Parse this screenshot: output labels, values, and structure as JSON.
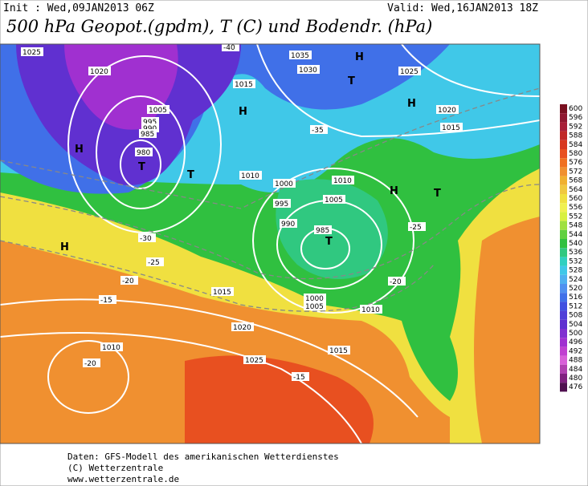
{
  "header": {
    "init": "Init : Wed,09JAN2013 06Z",
    "valid": "Valid: Wed,16JAN2013 18Z",
    "title": "500 hPa Geopot.(gpdm), T (C) und Bodendr. (hPa)"
  },
  "colorbar": {
    "labels": [
      "600",
      "596",
      "592",
      "588",
      "584",
      "580",
      "576",
      "572",
      "568",
      "564",
      "560",
      "556",
      "552",
      "548",
      "544",
      "540",
      "536",
      "532",
      "528",
      "524",
      "520",
      "516",
      "512",
      "508",
      "504",
      "500",
      "496",
      "492",
      "488",
      "484",
      "480",
      "476"
    ],
    "colors": [
      "#7a1020",
      "#901830",
      "#a82038",
      "#c02828",
      "#d83820",
      "#e85020",
      "#f07020",
      "#f09030",
      "#f0b030",
      "#f0c840",
      "#f0e040",
      "#f0f050",
      "#d8f040",
      "#a0e040",
      "#60d040",
      "#30c040",
      "#30c880",
      "#30d0c0",
      "#40c8e8",
      "#50b0f0",
      "#5090f0",
      "#4070e8",
      "#4050e0",
      "#5040d8",
      "#6030d0",
      "#8030d0",
      "#a030d0",
      "#c040d0",
      "#d860d8",
      "#b040b0",
      "#802080",
      "#501050"
    ]
  },
  "map": {
    "labels": [
      "1025",
      "1020",
      "1005",
      "995",
      "990",
      "985",
      "980",
      "T",
      "H",
      "H",
      "T",
      "T",
      "H",
      "H",
      "T",
      "H",
      "T",
      "H",
      "-40",
      "-35",
      "-30",
      "-25",
      "-20",
      "-15",
      "-25",
      "-20",
      "1010",
      "1015",
      "1030",
      "1035",
      "1000",
      "1010",
      "1005",
      "995",
      "990",
      "985",
      "1000",
      "1005",
      "1015",
      "1020",
      "1025",
      "1015",
      "1010",
      "1020",
      "1025",
      "1015",
      "-15",
      "-20",
      "1010"
    ]
  },
  "footer": {
    "lines": [
      "Daten: GFS-Modell des amerikanischen Wetterdienstes",
      "(C) Wetterzentrale",
      "www.wetterzentrale.de"
    ]
  }
}
